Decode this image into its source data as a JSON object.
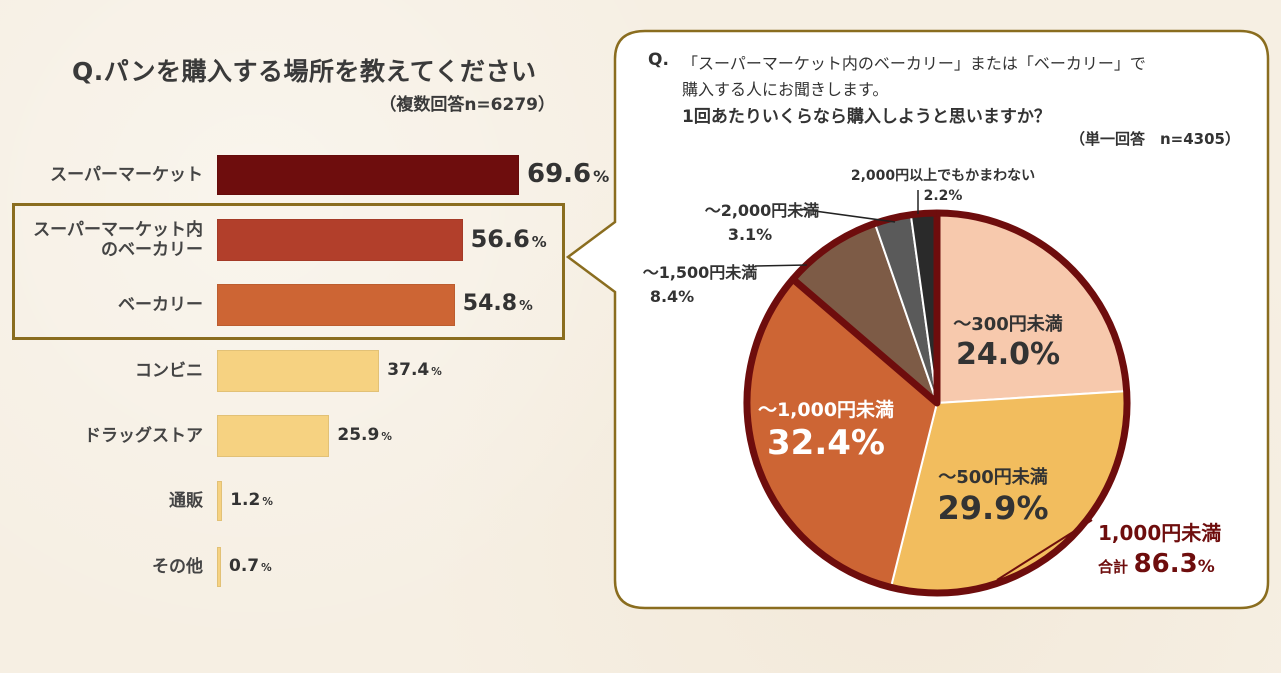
{
  "left_chart": {
    "title": "Q.パンを購入する場所を教えてください",
    "subtitle": "（複数回答n=6279）",
    "percent_sign": "%"
  },
  "right_chart": {
    "question_prefix": "Q.",
    "question_line1": "「スーパーマーケット内のベーカリー」または「ベーカリー」で",
    "question_line2": "購入する人にお聞きします。",
    "question_line3": "1回あたりいくらなら購入しようと思いますか？",
    "sample_note": "（単一回答　n=4305）",
    "total_label": "1,000円未満",
    "total_prefix": "合計",
    "total_value": "86.3",
    "total_sign": "%"
  },
  "chart_data": [
    {
      "type": "bar",
      "orientation": "horizontal",
      "title": "Q.パンを購入する場所を教えてください",
      "subtitle": "（複数回答n=6279）",
      "categories": [
        "スーパーマーケット",
        "スーパーマーケット内のベーカリー",
        "ベーカリー",
        "コンビニ",
        "ドラッグストア",
        "通販",
        "その他"
      ],
      "category_lines": [
        [
          "スーパーマーケット"
        ],
        [
          "スーパーマーケット内",
          "のベーカリー"
        ],
        [
          "ベーカリー"
        ],
        [
          "コンビニ"
        ],
        [
          "ドラッグストア"
        ],
        [
          "通販"
        ],
        [
          "その他"
        ]
      ],
      "values": [
        69.6,
        56.6,
        54.8,
        37.4,
        25.9,
        1.2,
        0.7
      ],
      "value_labels": [
        "69.6",
        "56.6",
        "54.8",
        "37.4",
        "25.9",
        "1.2",
        "0.7"
      ],
      "colors": [
        "#6e0d0d",
        "#b23f2b",
        "#cd6534",
        "#f6d281",
        "#f6d281",
        "#f6d281",
        "#f6d281"
      ],
      "highlighted_categories": [
        "スーパーマーケット内のベーカリー",
        "ベーカリー"
      ],
      "highlight_color": "#8a6d1f",
      "xlim": [
        0,
        100
      ],
      "grid": false,
      "legend": "none"
    },
    {
      "type": "pie",
      "title": "1回あたりいくらなら購入しようと思いますか？",
      "categories": [
        "〜300円未満",
        "〜500円未満",
        "〜1,000円未満",
        "〜1,500円未満",
        "〜2,000円未満",
        "2,000円以上でもかまわない"
      ],
      "values": [
        24.0,
        29.9,
        32.4,
        8.4,
        3.1,
        2.2
      ],
      "value_labels": [
        "24.0%",
        "29.9%",
        "32.4%",
        "8.4%",
        "3.1%",
        "2.2%"
      ],
      "colors": [
        "#f7c9ad",
        "#f2bd5e",
        "#cd6534",
        "#7d5b46",
        "#5a5a5a",
        "#2a2a2a"
      ],
      "start_angle_deg": 0,
      "direction": "clockwise",
      "group_outline": {
        "label": "1,000円未満",
        "total": 86.3,
        "slices": [
          "〜300円未満",
          "〜500円未満",
          "〜1,000円未満"
        ],
        "color": "#6e0d0d"
      },
      "legend": "labels-on-slices"
    }
  ]
}
